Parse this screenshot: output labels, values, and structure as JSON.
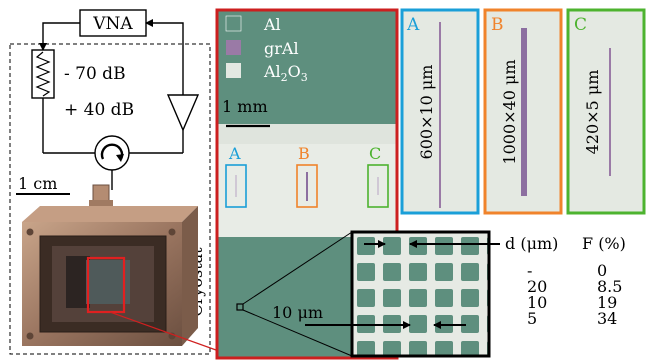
{
  "colors": {
    "al": "#5e8f7e",
    "gral": "#9a7aa6",
    "al2o3": "#e3e8e2",
    "frame_red": "#cc1f1f",
    "sample_a": "#1a9fd8",
    "sample_b": "#f0832b",
    "sample_c": "#4db32f"
  },
  "icons": [
    "attenuator-resistor-icon",
    "amplifier-triangle-icon",
    "circulator-icon",
    "photo-cryostat-box",
    "zoom-callout-lines"
  ],
  "setup": {
    "vna_label": "VNA",
    "attenuation_label": "- 70 dB",
    "amplification_label": "+ 40 dB",
    "scale_label": "1 cm",
    "cryostat_label": "Cryostat"
  },
  "chip": {
    "legend": {
      "al": "Al",
      "gral": "grAl",
      "al2o3_base": "Al",
      "al2o3_sub": "2",
      "al2o3_mid": "O",
      "al2o3_sub2": "3"
    },
    "scale_label": "1 mm",
    "markers": [
      "A",
      "B",
      "C"
    ]
  },
  "zoom": {
    "scale_label": "10 μm"
  },
  "panels": [
    {
      "letter": "A",
      "dims": "600×10 μm"
    },
    {
      "letter": "B",
      "dims": "1000×40 μm"
    },
    {
      "letter": "C",
      "dims": "420×5 μm"
    }
  ],
  "table": {
    "col_d": "d (μm)",
    "col_f": "F (%)",
    "rows": [
      {
        "d": "-",
        "f": "0"
      },
      {
        "d": "20",
        "f": "8.5"
      },
      {
        "d": "10",
        "f": "19"
      },
      {
        "d": "5",
        "f": "34"
      }
    ]
  }
}
